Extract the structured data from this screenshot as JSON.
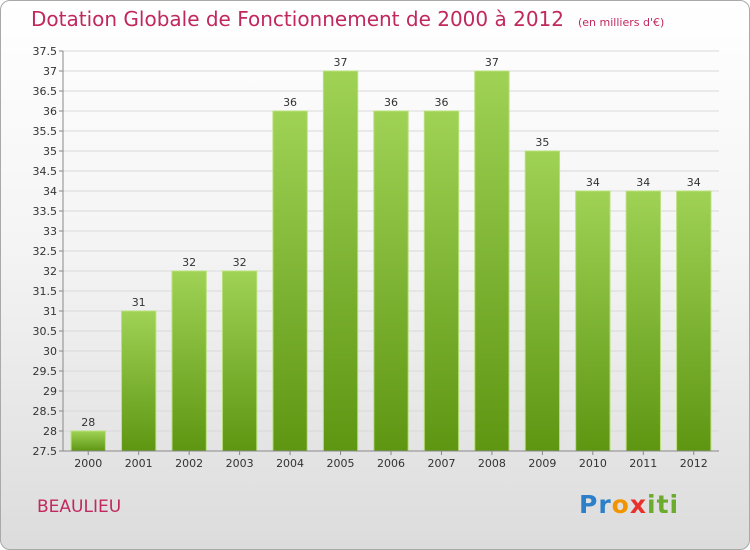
{
  "title": "Dotation Globale de Fonctionnement de 2000 à 2012",
  "subtitle": "(en milliers d'€)",
  "commune": "BEAULIEU",
  "logo_text": "Proxiti",
  "colors": {
    "title": "#c0285e",
    "bar_top": "#9fd255",
    "bar_bottom": "#5e9612",
    "grid": "#d9d9d9"
  },
  "chart_data": {
    "type": "bar",
    "title": "Dotation Globale de Fonctionnement de 2000 à 2012",
    "subtitle": "(en milliers d'€)",
    "xlabel": "",
    "ylabel": "",
    "categories": [
      "2000",
      "2001",
      "2002",
      "2003",
      "2004",
      "2005",
      "2006",
      "2007",
      "2008",
      "2009",
      "2010",
      "2011",
      "2012"
    ],
    "values": [
      28,
      31,
      32,
      32,
      36,
      37,
      36,
      36,
      37,
      35,
      34,
      34,
      34
    ],
    "ylim": [
      27.5,
      37.5
    ],
    "yticks": [
      "27.5",
      "28",
      "28.5",
      "29",
      "29.5",
      "30",
      "30.5",
      "31",
      "31.5",
      "32",
      "32.5",
      "33",
      "33.5",
      "34",
      "34.5",
      "35",
      "35.5",
      "36",
      "36.5",
      "37",
      "37.5"
    ],
    "grid": true,
    "legend": "none"
  }
}
